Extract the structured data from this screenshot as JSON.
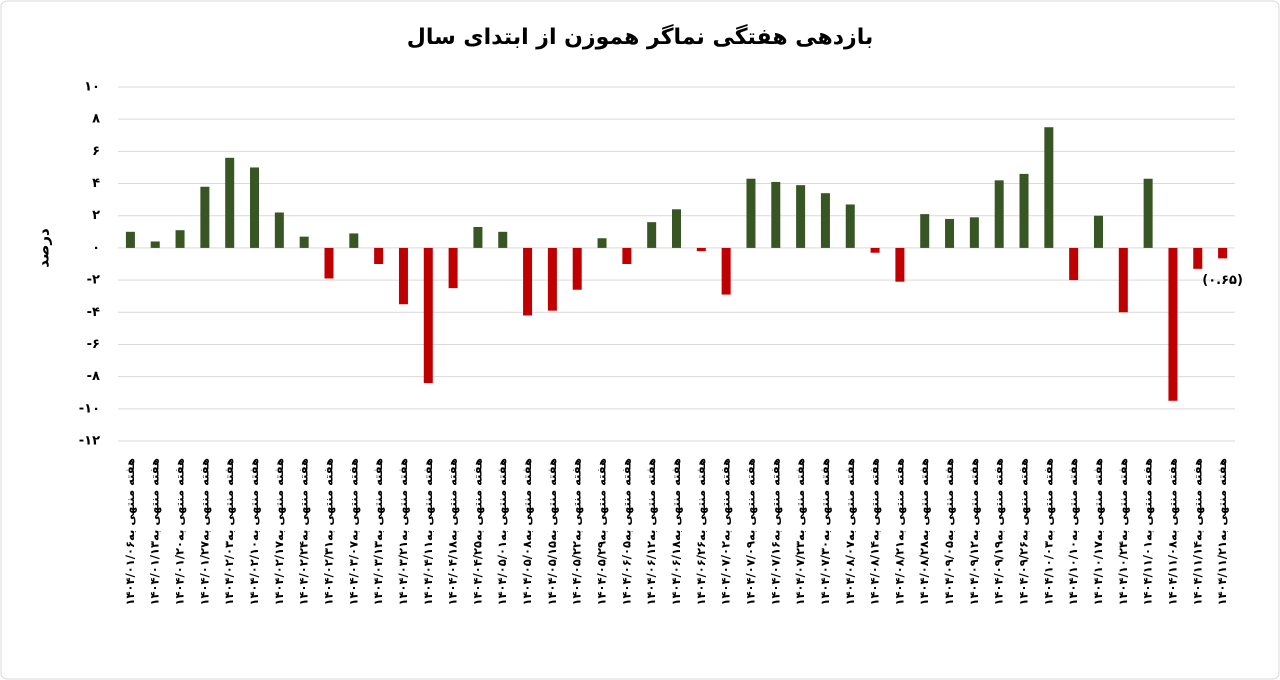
{
  "chart_data": {
    "type": "bar",
    "title": "بازدهی هفتگی نماگر هموزن از ابتدای سال",
    "y_label": "درصد",
    "categories": [
      "هفته منتهی به۱۴۰۴/۰۱/۰۶",
      "هفته منتهی به۱۴۰۴/۰۱/۱۳",
      "هفته منتهی به۱۴۰۴/۰۱/۲۰",
      "هفته منتهی به۱۴۰۴/۰۱/۲۷",
      "هفته منتهی به۱۴۰۴/۰۲/۰۳",
      "هفته منتهی به۱۴۰۴/۰۲/۱۰",
      "هفته منتهی به۱۴۰۴/۰۲/۱۷",
      "هفته منتهی به۱۴۰۴/۰۲/۲۴",
      "هفته منتهی به۱۴۰۴/۰۲/۳۱",
      "هفته منتهی به۱۴۰۴/۰۳/۰۷",
      "هفته منتهی به۱۴۰۴/۰۳/۱۳",
      "هفته منتهی به۱۴۰۴/۰۳/۲۱",
      "هفته منتهی به۱۴۰۴/۰۴/۱۱",
      "هفته منتهی به۱۴۰۴/۰۴/۱۸",
      "هفته منتهی به۱۴۰۴/۰۴/۲۵",
      "هفته منتهی به۱۴۰۴/۰۵/۰۱",
      "هفته منتهی به۱۴۰۴/۰۵/۰۸",
      "هفته منتهی به۱۴۰۴/۰۵/۱۵",
      "هفته منتهی به۱۴۰۴/۰۵/۲۲",
      "هفته منتهی به۱۴۰۴/۰۵/۲۹",
      "هفته منتهی به۱۴۰۴/۰۶/۰۵",
      "هفته منتهی به۱۴۰۴/۰۶/۱۲",
      "هفته منتهی به۱۴۰۴/۰۶/۱۸",
      "هفته منتهی به۱۴۰۴/۰۶/۲۶",
      "هفته منتهی به۱۴۰۴/۰۷/۰۲",
      "هفته منتهی به۱۴۰۴/۰۷/۰۹",
      "هفته منتهی به۱۴۰۴/۰۷/۱۶",
      "هفته منتهی به۱۴۰۴/۰۷/۲۳",
      "هفته منتهی به۱۴۰۴/۰۷/۳۰",
      "هفته منتهی به۱۴۰۴/۰۸/۰۷",
      "هفته منتهی به۱۴۰۴/۰۸/۱۴",
      "هفته منتهی به۱۴۰۴/۰۸/۲۱",
      "هفته منتهی به۱۴۰۴/۰۸/۲۸",
      "هفته منتهی به۱۴۰۴/۰۹/۰۵",
      "هفته منتهی به۱۴۰۴/۰۹/۱۲",
      "هفته منتهی به۱۴۰۴/۰۹/۱۹",
      "هفته منتهی به۱۴۰۴/۰۹/۲۶",
      "هفته منتهی به۱۴۰۴/۱۰/۰۳",
      "هفته منتهی به۱۴۰۴/۱۰/۱۰",
      "هفته منتهی به۱۴۰۴/۱۰/۱۷",
      "هفته منتهی به۱۴۰۴/۱۰/۲۴",
      "هفته منتهی به۱۴۰۴/۱۱/۰۱",
      "هفته منتهی به۱۴۰۴/۱۱/۰۸",
      "هفته منتهی به۱۴۰۴/۱۱/۱۴",
      "هفته منتهی به۱۴۰۴/۱۱/۲۱"
    ],
    "values": [
      1.0,
      0.4,
      1.1,
      3.8,
      5.6,
      5.0,
      2.2,
      0.7,
      -1.9,
      0.9,
      -1.0,
      -3.5,
      -8.4,
      -2.5,
      1.3,
      1.0,
      -4.2,
      -3.9,
      -2.6,
      0.6,
      -1.0,
      1.6,
      2.4,
      -0.2,
      -2.9,
      4.3,
      4.1,
      3.9,
      3.4,
      2.7,
      -0.3,
      -2.1,
      2.1,
      1.8,
      1.9,
      4.2,
      4.6,
      7.5,
      -2.0,
      2.0,
      -4.0,
      4.3,
      -9.5,
      -1.3,
      -0.65
    ],
    "value_labels": [
      null,
      null,
      null,
      null,
      null,
      null,
      null,
      null,
      null,
      null,
      null,
      null,
      null,
      null,
      null,
      null,
      null,
      null,
      null,
      null,
      null,
      null,
      null,
      null,
      null,
      null,
      null,
      null,
      null,
      null,
      null,
      null,
      null,
      null,
      null,
      null,
      null,
      null,
      null,
      null,
      null,
      null,
      null,
      null,
      "(۰.۶۵)"
    ],
    "positive_color": "#375623",
    "negative_color": "#c00000",
    "ylim": [
      -12,
      10
    ],
    "yticks": [
      {
        "value": 10,
        "label": "۱۰"
      },
      {
        "value": 8,
        "label": "۸"
      },
      {
        "value": 6,
        "label": "۶"
      },
      {
        "value": 4,
        "label": "۴"
      },
      {
        "value": 2,
        "label": "۲"
      },
      {
        "value": 0,
        "label": "۰"
      },
      {
        "value": -2,
        "label": "-۲"
      },
      {
        "value": -4,
        "label": "-۴"
      },
      {
        "value": -6,
        "label": "-۶"
      },
      {
        "value": -8,
        "label": "-۸"
      },
      {
        "value": -10,
        "label": "-۱۰"
      },
      {
        "value": -12,
        "label": "-۱۲"
      }
    ],
    "grid": true
  }
}
